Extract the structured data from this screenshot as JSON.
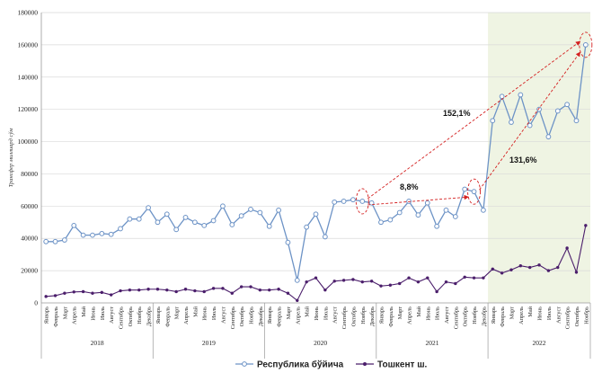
{
  "chart_data": {
    "type": "line",
    "ylabel": "Трансфер миллиард сўм",
    "ylim": [
      0,
      180000
    ],
    "yticks": [
      0,
      20000,
      40000,
      60000,
      80000,
      100000,
      120000,
      140000,
      160000,
      180000
    ],
    "years": [
      "2018",
      "2019",
      "2020",
      "2021",
      "2022"
    ],
    "months": [
      "Январь",
      "Февраль",
      "Март",
      "Апрель",
      "Май",
      "Июнь",
      "Июль",
      "Август",
      "Сентябрь",
      "Октябрь",
      "Ноябрь",
      "Декабрь"
    ],
    "months_last_year": [
      "Январь",
      "Февраль",
      "Март",
      "Апрель",
      "Май",
      "Июнь",
      "Июль",
      "Август",
      "Сентябрь",
      "Октябрь",
      "Ноябрь"
    ],
    "highlight_year": "2022",
    "series": [
      {
        "name": "Республика бўйича",
        "color": "#6d93c6",
        "values": [
          38000,
          38000,
          39000,
          48000,
          42000,
          42000,
          43000,
          42500,
          46000,
          52000,
          52000,
          59000,
          50000,
          55000,
          45500,
          53000,
          50000,
          48000,
          51000,
          60000,
          48500,
          54000,
          58000,
          56000,
          47500,
          57500,
          37500,
          14000,
          47000,
          55000,
          41000,
          62500,
          63000,
          64000,
          63000,
          62000,
          50000,
          51500,
          56000,
          63000,
          54500,
          62000,
          47500,
          57500,
          53500,
          70500,
          69000,
          57500,
          113000,
          128000,
          112000,
          129000,
          110000,
          120000,
          103000,
          119000,
          123000,
          113000,
          160000
        ]
      },
      {
        "name": "Тошкент ш.",
        "color": "#4b1e6b",
        "values": [
          4000,
          4500,
          6000,
          6800,
          7000,
          6000,
          6500,
          5000,
          7500,
          8000,
          8000,
          8500,
          8500,
          8000,
          7000,
          8500,
          7500,
          7000,
          9000,
          9000,
          6000,
          10000,
          10000,
          8000,
          8000,
          8500,
          6000,
          1500,
          13000,
          15500,
          8000,
          13500,
          14000,
          14500,
          13000,
          13500,
          10500,
          11000,
          12000,
          15500,
          13000,
          15500,
          7000,
          13000,
          12000,
          16000,
          15500,
          15500,
          21000,
          18500,
          20500,
          23000,
          22000,
          23500,
          20000,
          22000,
          34000,
          19000,
          48000
        ]
      }
    ],
    "annotations": {
      "label_1": "152,1%",
      "label_2": "8,8%",
      "label_3": "131,6%"
    },
    "legend_position": "bottom-center"
  }
}
